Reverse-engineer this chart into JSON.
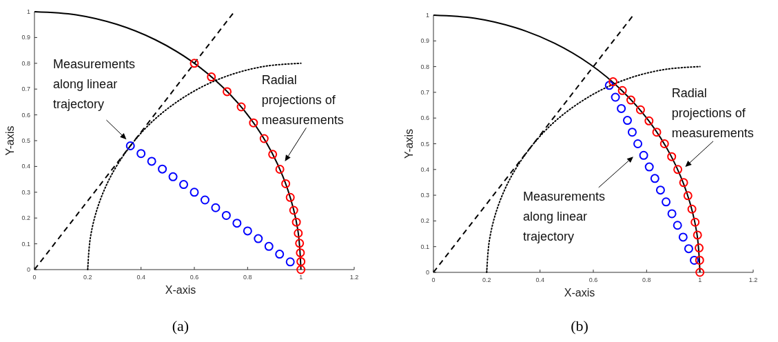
{
  "chart_data": [
    {
      "type": "scatter",
      "xlabel": "X-axis",
      "ylabel": "Y-axis",
      "xlim": [
        0,
        1.2
      ],
      "ylim": [
        0,
        1
      ],
      "xticks": [
        0,
        0.2,
        0.4,
        0.6,
        0.8,
        1,
        1.2
      ],
      "yticks": [
        0,
        0.1,
        0.2,
        0.3,
        0.4,
        0.5,
        0.6,
        0.7,
        0.8,
        0.9,
        1
      ],
      "grid": false,
      "marker": "circle",
      "series": [
        {
          "type": "line",
          "color": "#000000",
          "line_style": "solid",
          "marker": "none",
          "x": [
            0,
            0.156,
            0.309,
            0.454,
            0.588,
            0.707,
            0.809,
            0.891,
            0.951,
            0.988,
            1
          ],
          "values": [
            1,
            0.988,
            0.951,
            0.891,
            0.809,
            0.707,
            0.588,
            0.454,
            0.309,
            0.156,
            0
          ]
        },
        {
          "type": "line",
          "color": "#000000",
          "line_style": "dashed",
          "marker": "none",
          "x": [
            0,
            0.75
          ],
          "values": [
            0,
            1
          ]
        },
        {
          "type": "line",
          "color": "#000000",
          "line_style": "dotted",
          "marker": "none",
          "x": [
            0.2,
            0.21,
            0.239,
            0.287,
            0.353,
            0.434,
            0.53,
            0.637,
            0.753,
            0.875,
            1
          ],
          "values": [
            0,
            0.125,
            0.247,
            0.363,
            0.47,
            0.566,
            0.647,
            0.713,
            0.761,
            0.79,
            0.8
          ]
        },
        {
          "color": "#0000ff",
          "x": [
            0.36,
            0.4,
            0.44,
            0.48,
            0.52,
            0.56,
            0.6,
            0.64,
            0.68,
            0.72,
            0.76,
            0.8,
            0.84,
            0.88,
            0.92,
            0.96
          ],
          "values": [
            0.48,
            0.45,
            0.42,
            0.39,
            0.36,
            0.33,
            0.3,
            0.27,
            0.24,
            0.21,
            0.18,
            0.15,
            0.12,
            0.09,
            0.06,
            0.03
          ]
        },
        {
          "color": "#ff0000",
          "x": [
            0.6,
            0.664,
            0.723,
            0.776,
            0.822,
            0.862,
            0.894,
            0.921,
            0.943,
            0.96,
            0.973,
            0.983,
            0.99,
            0.995,
            0.998,
            1,
            1
          ],
          "values": [
            0.8,
            0.747,
            0.69,
            0.631,
            0.569,
            0.508,
            0.447,
            0.389,
            0.333,
            0.28,
            0.23,
            0.184,
            0.141,
            0.102,
            0.065,
            0.031,
            0
          ]
        }
      ],
      "annotations": [
        "Measurements along linear trajectory",
        "Radial projections of measurements",
        "(a)"
      ]
    },
    {
      "type": "scatter",
      "xlabel": "X-axis",
      "ylabel": "Y-axis",
      "xlim": [
        0,
        1.2
      ],
      "ylim": [
        0,
        1
      ],
      "xticks": [
        0,
        0.2,
        0.4,
        0.6,
        0.8,
        1,
        1.2
      ],
      "yticks": [
        0,
        0.1,
        0.2,
        0.3,
        0.4,
        0.5,
        0.6,
        0.7,
        0.8,
        0.9,
        1
      ],
      "grid": false,
      "marker": "circle",
      "series": [
        {
          "type": "line",
          "color": "#000000",
          "line_style": "solid",
          "marker": "none",
          "x": [
            0,
            0.156,
            0.309,
            0.454,
            0.588,
            0.707,
            0.809,
            0.891,
            0.951,
            0.988,
            1
          ],
          "values": [
            1,
            0.988,
            0.951,
            0.891,
            0.809,
            0.707,
            0.588,
            0.454,
            0.309,
            0.156,
            0
          ]
        },
        {
          "type": "line",
          "color": "#000000",
          "line_style": "dashed",
          "marker": "none",
          "x": [
            0,
            0.75
          ],
          "values": [
            0,
            1
          ]
        },
        {
          "type": "line",
          "color": "#000000",
          "line_style": "dotted",
          "marker": "none",
          "x": [
            0.2,
            0.21,
            0.239,
            0.287,
            0.353,
            0.434,
            0.53,
            0.637,
            0.753,
            0.875,
            1
          ],
          "values": [
            0,
            0.125,
            0.247,
            0.363,
            0.47,
            0.566,
            0.647,
            0.713,
            0.761,
            0.79,
            0.8
          ]
        },
        {
          "color": "#0000ff",
          "x": [
            0.66,
            0.683,
            0.705,
            0.728,
            0.746,
            0.767,
            0.789,
            0.81,
            0.831,
            0.852,
            0.873,
            0.895,
            0.916,
            0.937,
            0.958,
            0.979
          ],
          "values": [
            0.727,
            0.681,
            0.637,
            0.591,
            0.545,
            0.5,
            0.455,
            0.41,
            0.365,
            0.32,
            0.274,
            0.228,
            0.183,
            0.137,
            0.092,
            0.047
          ]
        },
        {
          "color": "#ff0000",
          "x": [
            0.674,
            0.709,
            0.741,
            0.777,
            0.809,
            0.838,
            0.867,
            0.894,
            0.917,
            0.939,
            0.955,
            0.97,
            0.982,
            0.991,
            0.997,
            0.999,
            1
          ],
          "values": [
            0.741,
            0.707,
            0.67,
            0.632,
            0.589,
            0.545,
            0.5,
            0.45,
            0.4,
            0.349,
            0.298,
            0.246,
            0.195,
            0.145,
            0.095,
            0.047,
            0
          ]
        }
      ],
      "annotations": [
        "Measurements along linear trajectory",
        "Radial projections of measurements",
        "(b)"
      ]
    }
  ]
}
